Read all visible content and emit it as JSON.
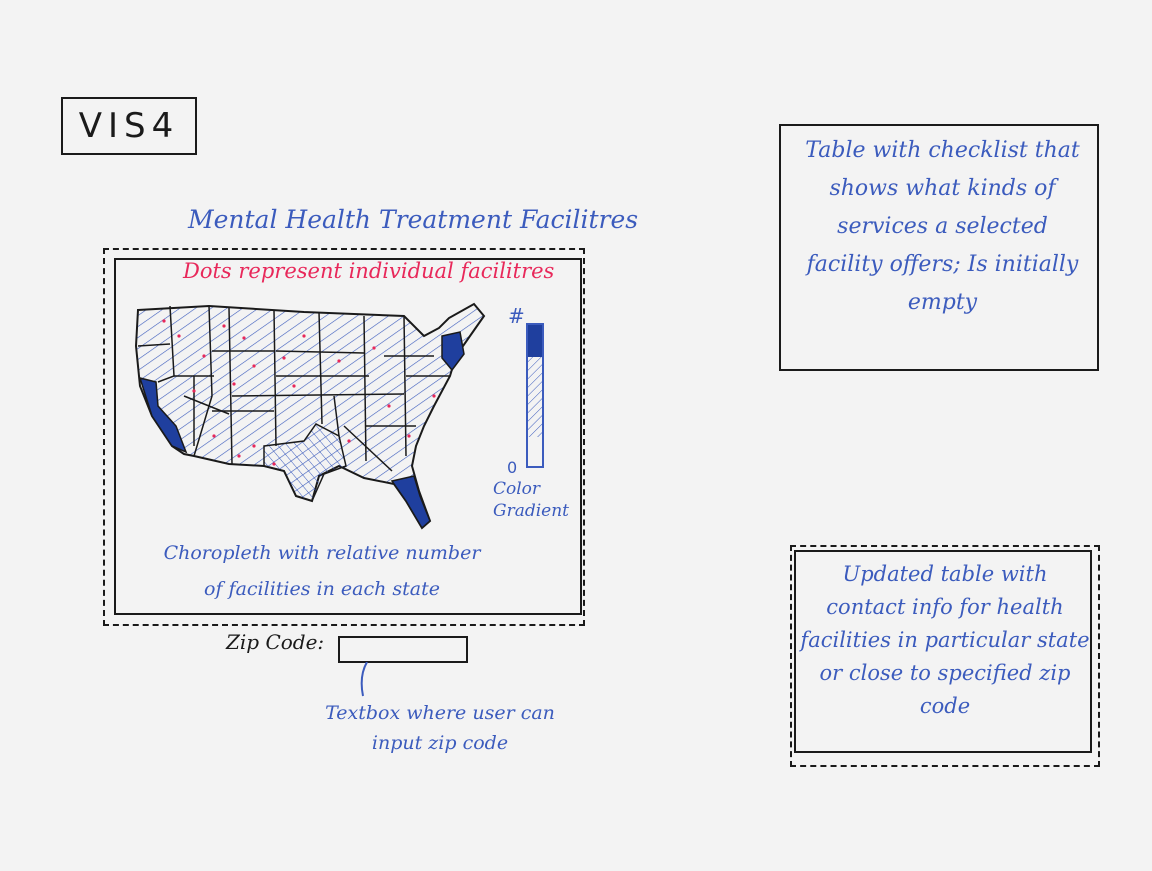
{
  "vis_label": "VIS4",
  "map": {
    "title": "Mental Health Treatment Facilitres",
    "dots_note": "Dots represent individual facilitres",
    "choropleth_note": "Choropleth with relative number of facilities in each state",
    "gradient_top_label": "#",
    "gradient_bottom_label": "0",
    "gradient_caption": "Color Gradient"
  },
  "zip": {
    "label": "Zip Code:",
    "value": "",
    "note": "Textbox where user can input zip code"
  },
  "checklist_table": {
    "note": "Table with checklist that shows what kinds of services a selected facility offers; Is initially empty"
  },
  "contact_table": {
    "note": "Updated table with contact info for health facilities in particular state or close to specified zip code"
  },
  "colors": {
    "ink": "#1a1a1a",
    "pen_blue": "#3b5bbd",
    "dark_blue": "#1f3f9e",
    "dot_red": "#e8285a"
  }
}
